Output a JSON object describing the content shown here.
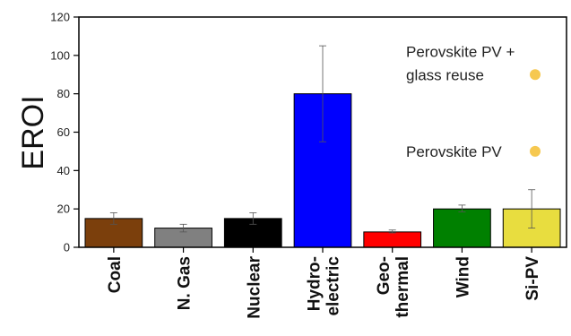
{
  "chart_data": {
    "type": "bar",
    "ylabel": "EROI",
    "ylim": [
      0,
      120
    ],
    "yticks": [
      "0",
      "20",
      "40",
      "60",
      "80",
      "100",
      "120"
    ],
    "categories": [
      {
        "lines": [
          "Coal"
        ]
      },
      {
        "lines": [
          "N. Gas"
        ]
      },
      {
        "lines": [
          "Nuclear"
        ]
      },
      {
        "lines": [
          "Hydro-",
          "electric"
        ]
      },
      {
        "lines": [
          "Geo-",
          "thermal"
        ]
      },
      {
        "lines": [
          "Wind"
        ]
      },
      {
        "lines": [
          "Si-PV"
        ]
      }
    ],
    "values": [
      15,
      10,
      15,
      80,
      8,
      20,
      20
    ],
    "error_low": [
      12,
      8,
      12,
      55,
      7.5,
      18.5,
      10
    ],
    "error_high": [
      18,
      12,
      18,
      105,
      9,
      22,
      30
    ],
    "colors": [
      "#7b3f0c",
      "#808080",
      "#000000",
      "#0000ff",
      "#ff0000",
      "#008000",
      "#e8dd3f"
    ],
    "annotations": [
      {
        "lines": [
          "Perovskite PV +",
          "glass reuse"
        ],
        "value": 90,
        "marker_color": "#f6c850"
      },
      {
        "lines": [
          "Perovskite PV"
        ],
        "value": 50,
        "marker_color": "#f6c850"
      }
    ]
  }
}
